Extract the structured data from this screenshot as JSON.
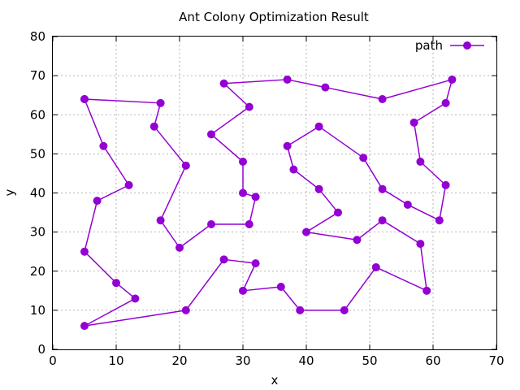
{
  "chart_data": {
    "type": "line",
    "title": "Ant Colony Optimization Result",
    "xlabel": "x",
    "ylabel": "y",
    "xlim": [
      0,
      70
    ],
    "ylim": [
      0,
      80
    ],
    "xticks": [
      0,
      10,
      20,
      30,
      40,
      50,
      60,
      70
    ],
    "yticks": [
      0,
      10,
      20,
      30,
      40,
      50,
      60,
      70,
      80
    ],
    "grid": true,
    "legend_position": "top-right",
    "series": [
      {
        "name": "path",
        "color": "#9400d3",
        "marker": "circle",
        "x": [
          5,
          17,
          16,
          21,
          17,
          20,
          25,
          31,
          32,
          30,
          30,
          25,
          31,
          27,
          37,
          43,
          52,
          63,
          62,
          57,
          58,
          62,
          61,
          56,
          52,
          49,
          42,
          37,
          38,
          42,
          45,
          40,
          48,
          52,
          58,
          59,
          51,
          46,
          39,
          36,
          30,
          32,
          27,
          21,
          5,
          13,
          10,
          5,
          7,
          12,
          8,
          5
        ],
        "y": [
          64,
          63,
          57,
          47,
          33,
          26,
          32,
          32,
          39,
          40,
          48,
          55,
          62,
          68,
          69,
          67,
          64,
          69,
          63,
          58,
          48,
          42,
          33,
          37,
          41,
          49,
          57,
          52,
          46,
          41,
          35,
          30,
          28,
          33,
          27,
          15,
          21,
          10,
          10,
          16,
          15,
          22,
          23,
          10,
          6,
          13,
          17,
          25,
          38,
          42,
          52,
          64
        ]
      }
    ]
  }
}
